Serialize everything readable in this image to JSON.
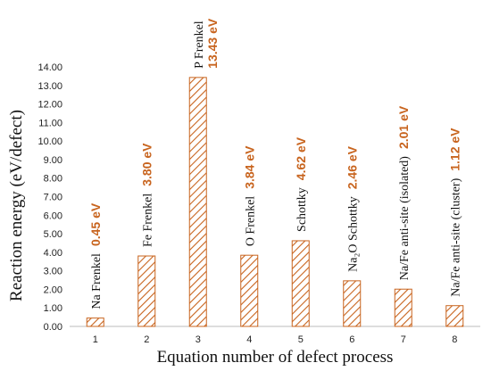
{
  "chart_data": {
    "type": "bar",
    "categories": [
      "1",
      "2",
      "3",
      "4",
      "5",
      "6",
      "7",
      "8"
    ],
    "values": [
      0.45,
      3.8,
      13.43,
      3.84,
      4.62,
      2.46,
      2.01,
      1.12
    ],
    "bar_labels": [
      {
        "name": "Na Frenkel",
        "value": "0.45 eV"
      },
      {
        "name": "Fe Frenkel",
        "value": "3.80 eV"
      },
      {
        "name": "P Frenkel",
        "value": "13.43 eV"
      },
      {
        "name": "O Frenkel",
        "value": "3.84 eV"
      },
      {
        "name": "Schottky",
        "value": "4.62 eV"
      },
      {
        "name": "Na₂O Schottky",
        "value": "2.46 eV"
      },
      {
        "name": "Na/Fe anti-site (isolated)",
        "value": "2.01 eV"
      },
      {
        "name": "Na/Fe anti-site (cluster)",
        "value": "1.12 eV"
      }
    ],
    "xlabel": "Equation number of defect process",
    "ylabel": "Reaction energy (eV/defect)",
    "ylim": [
      0,
      14
    ],
    "yticks": [
      "0.00",
      "1.00",
      "2.00",
      "3.00",
      "4.00",
      "5.00",
      "6.00",
      "7.00",
      "8.00",
      "9.00",
      "10.00",
      "11.00",
      "12.00",
      "13.00",
      "14.00"
    ],
    "grid": false,
    "bar_color": "#c8641e",
    "bar_fill": "diagonal-hatch",
    "value_color": "#c8641e"
  }
}
